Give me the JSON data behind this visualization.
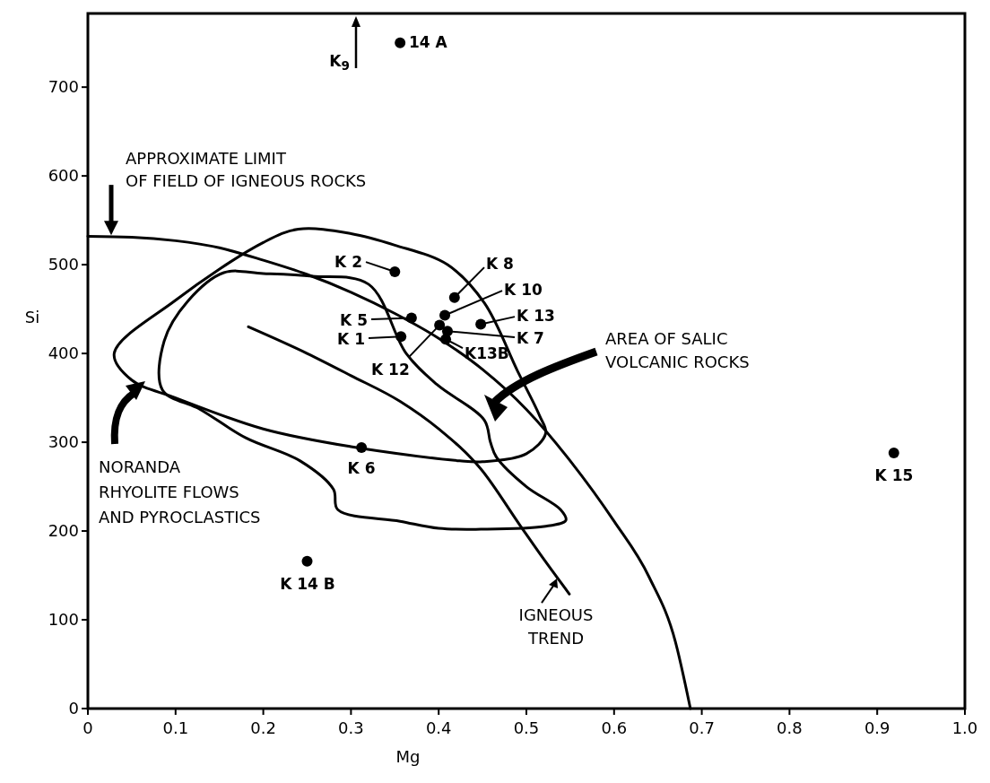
{
  "chart_data": {
    "type": "scatter",
    "xlabel": "Mg",
    "ylabel": "Si",
    "xlim": [
      0,
      1
    ],
    "ylim": [
      0,
      783
    ],
    "xticks": [
      {
        "value": 0,
        "label": "0"
      },
      0.1,
      0.2,
      0.3,
      0.4,
      0.5,
      0.6,
      0.7,
      0.8,
      0.9,
      {
        "value": 1,
        "label": "1.0"
      }
    ],
    "yticks": [
      0,
      100,
      200,
      300,
      400,
      500,
      600,
      700
    ],
    "grid": false,
    "marker": "circle",
    "series": [
      {
        "color": "#000000",
        "x": [
          0.356,
          0.35,
          0.418,
          0.407,
          0.448,
          0.41,
          0.408,
          0.401,
          0.369,
          0.357,
          0.312,
          0.25,
          0.919
        ],
        "values": [
          750,
          492,
          463,
          443,
          433,
          425,
          416,
          432,
          440,
          419,
          294,
          166,
          288
        ]
      },
      {
        "type": "line",
        "marker": "none",
        "color": "#000000",
        "x": [
          0,
          0.05,
          0.1,
          0.15,
          0.2,
          0.25,
          0.3,
          0.35,
          0.4,
          0.45,
          0.5,
          0.55,
          0.6,
          0.64,
          0.67,
          0.687
        ],
        "values": [
          532,
          531,
          527,
          519,
          505,
          489,
          469,
          445,
          417,
          382,
          337,
          279,
          211,
          148,
          75,
          0
        ]
      },
      {
        "type": "line",
        "marker": "none",
        "color": "#000000",
        "x": [
          0.183,
          0.25,
          0.3,
          0.356,
          0.4,
          0.448,
          0.493,
          0.52,
          0.549
        ],
        "values": [
          430,
          400,
          375,
          346,
          315,
          270,
          206,
          168,
          129
        ]
      }
    ],
    "annotations": [
      {
        "text": "14 A",
        "x": 0.356,
        "y": 750
      },
      {
        "text": "K 2",
        "x": 0.35,
        "y": 492
      },
      {
        "text": "K 8",
        "x": 0.418,
        "y": 463
      },
      {
        "text": "K 10",
        "x": 0.407,
        "y": 443
      },
      {
        "text": "K 13",
        "x": 0.448,
        "y": 433
      },
      "K 7",
      {
        "text": "K13B",
        "x": 0.408,
        "y": 416
      },
      {
        "text": "K 12",
        "x": 0.401,
        "y": 432
      },
      {
        "text": "K 5",
        "x": 0.369,
        "y": 440
      },
      {
        "text": "K 1",
        "x": 0.357,
        "y": 419
      },
      {
        "text": "K 6",
        "x": 0.312,
        "y": 294
      },
      {
        "text": "K 14 B",
        "x": 0.25,
        "y": 166
      },
      {
        "text": "K 15",
        "x": 0.919,
        "y": 288
      },
      {
        "text": "APPROXIMATE LIMIT\nOF FIELD OF IGNEOUS ROCKS",
        "x": 0.027,
        "y": 532
      },
      "NORANDA\nRHYOLITE FLOWS\nAND PYROCLASTICS",
      "AREA OF SALIC\nVOLCANIC ROCKS",
      {
        "text": "IGNEOUS\nTREND",
        "x": 0.535,
        "y": 144
      },
      "K$_{9}$"
    ]
  }
}
